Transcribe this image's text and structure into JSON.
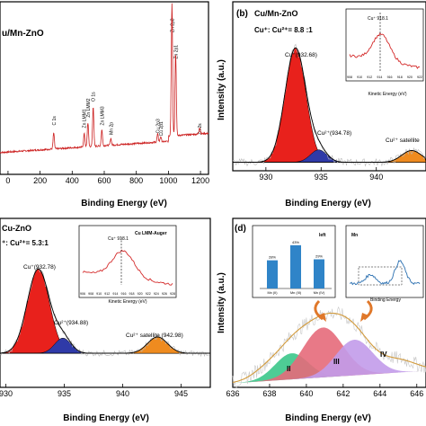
{
  "chart_data": [
    {
      "type": "line",
      "panel_label": "",
      "title": "u/Mn-ZnO",
      "xlabel": "Binding Energy (eV)",
      "ylabel": "",
      "xlim": [
        -50,
        1250
      ],
      "xticks": [
        "0",
        "200",
        "400",
        "600",
        "800",
        "1000",
        "1200"
      ],
      "annotations": [
        {
          "text": "C 1s",
          "x": 285
        },
        {
          "text": "Zn LMM1",
          "x": 475
        },
        {
          "text": "Zn LMM2",
          "x": 498
        },
        {
          "text": "O 1s",
          "x": 531
        },
        {
          "text": "Zn LMM3",
          "x": 585
        },
        {
          "text": "Mn 2p",
          "x": 641
        },
        {
          "text": "Cu 2p3",
          "x": 933
        },
        {
          "text": "Cu 2p1",
          "x": 952
        },
        {
          "text": "Zn 2p3",
          "x": 1022
        },
        {
          "text": "Zn 2p1",
          "x": 1045
        },
        {
          "text": "Zn 2s",
          "x": 1195
        }
      ],
      "peaks": [
        {
          "x": 285,
          "h": 0.12
        },
        {
          "x": 475,
          "h": 0.1
        },
        {
          "x": 498,
          "h": 0.18
        },
        {
          "x": 531,
          "h": 0.3
        },
        {
          "x": 585,
          "h": 0.12
        },
        {
          "x": 641,
          "h": 0.05
        },
        {
          "x": 933,
          "h": 0.06
        },
        {
          "x": 952,
          "h": 0.04
        },
        {
          "x": 1022,
          "h": 1.0
        },
        {
          "x": 1045,
          "h": 0.62
        },
        {
          "x": 1195,
          "h": 0.05
        }
      ]
    },
    {
      "type": "line",
      "panel_label": "(b)",
      "title": "Cu/Mn-ZnO",
      "ratio_text": "Cu⁺: Cu²⁺= 8.8 :1",
      "xlabel": "Binding Energy (eV)",
      "ylabel": "Intensity (a.u.)",
      "xlim": [
        927,
        944.5
      ],
      "xticks": [
        "930",
        "935",
        "940"
      ],
      "components": [
        {
          "name": "Cu⁺(932.68)",
          "center": 932.68,
          "height": 0.78,
          "width": 0.95,
          "color": "#e8211c"
        },
        {
          "name": "Cu²⁺(934.78)",
          "center": 934.78,
          "height": 0.085,
          "width": 0.75,
          "color": "#2f3aa8"
        },
        {
          "name": "Cu²⁺  satellite",
          "center": 943.2,
          "height": 0.08,
          "width": 0.9,
          "color": "#ef8b1f"
        }
      ],
      "inset": {
        "label": "Cu⁺ 918.1",
        "xlabel": "Kinetic Energy (eV)",
        "xticks": [
          "908",
          "910",
          "912",
          "914",
          "916",
          "918",
          "920",
          "922"
        ]
      }
    },
    {
      "type": "line",
      "panel_label": "",
      "title": "Cu-ZnO",
      "ratio_text": "⁺: Cu²⁺= 5.3:1",
      "xlabel": "Binding Energy (eV)",
      "ylabel": "",
      "xlim": [
        929.5,
        947.5
      ],
      "xticks": [
        "930",
        "935",
        "940",
        "945"
      ],
      "components": [
        {
          "name": "Cu⁺(932.78)",
          "center": 932.78,
          "height": 0.72,
          "width": 0.95,
          "color": "#e8211c"
        },
        {
          "name": "Cu²⁺(934.88)",
          "center": 934.88,
          "height": 0.13,
          "width": 0.7,
          "color": "#2f3aa8"
        },
        {
          "name": "Cu²⁺  satellite (942.98)",
          "center": 942.98,
          "height": 0.14,
          "width": 0.85,
          "color": "#ef8b1f"
        }
      ],
      "inset": {
        "title": "Cu LMM-Auger",
        "label": "Cu⁺ 918.1",
        "xlabel": "Kinetic Energy (eV)",
        "xticks": [
          "906",
          "908",
          "910",
          "912",
          "914",
          "916",
          "918",
          "920",
          "922",
          "924",
          "926",
          "928"
        ]
      }
    },
    {
      "type": "area",
      "panel_label": "(d)",
      "xlabel": "Binding Energy (eV)",
      "ylabel": "Intensity (a.u.)",
      "xlim": [
        636,
        646.5
      ],
      "xticks": [
        "636",
        "638",
        "640",
        "642",
        "644",
        "646"
      ],
      "components": [
        {
          "name": "II",
          "center": 639.2,
          "height": 0.22,
          "width": 0.9,
          "color": "#3bc78a"
        },
        {
          "name": "III",
          "center": 640.9,
          "height": 0.42,
          "width": 1.1,
          "color": "#e66a7a"
        },
        {
          "name": "IV",
          "center": 642.6,
          "height": 0.3,
          "width": 1.0,
          "color": "#c29bea"
        }
      ],
      "inset_bar": {
        "title": "left",
        "categories": [
          "Mn (II)",
          "Mn (III)",
          "Mn (IV)"
        ],
        "values": [
          28,
          43,
          29
        ],
        "value_labels": [
          "28%",
          "43%",
          "29%"
        ]
      },
      "inset_line": {
        "title": "Mn",
        "xlabel": "Binding Energy"
      }
    }
  ]
}
